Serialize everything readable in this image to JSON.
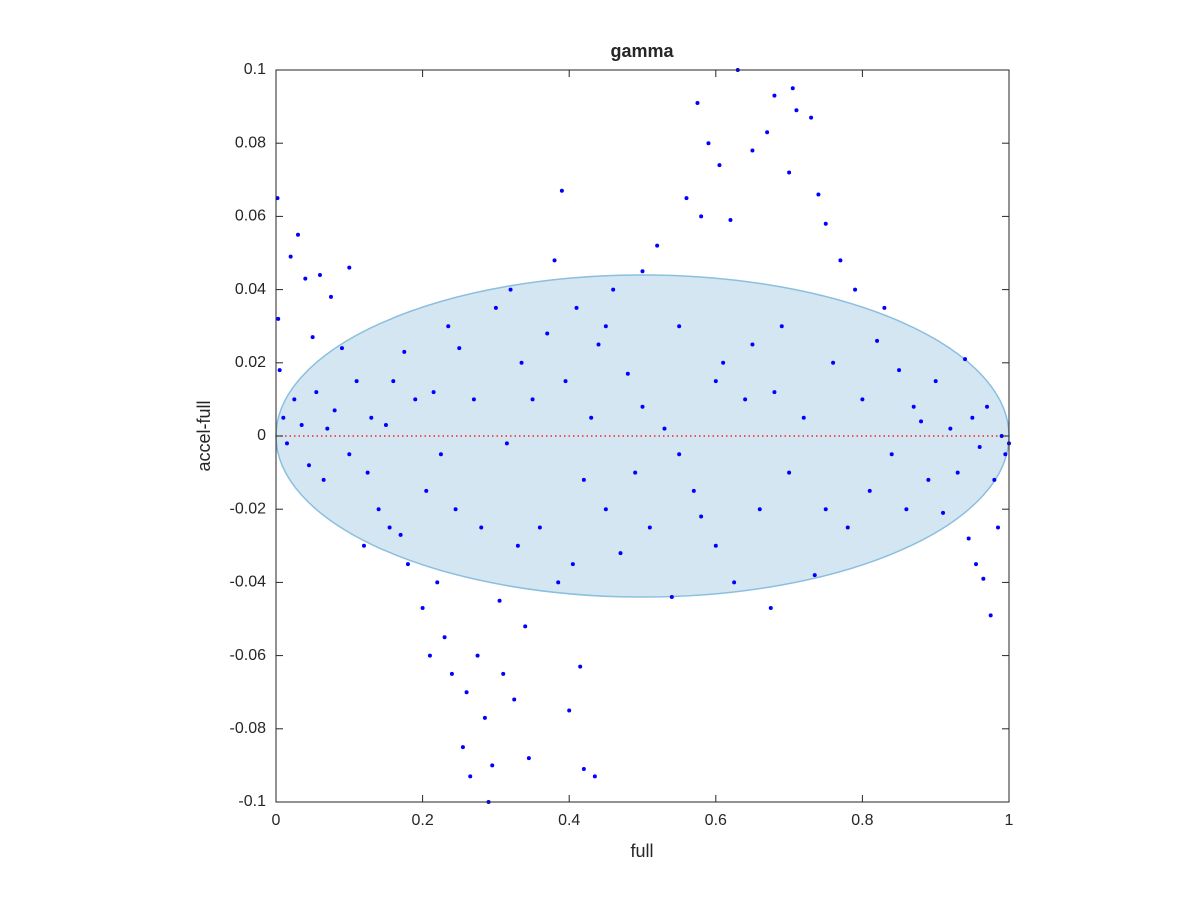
{
  "chart_data": {
    "type": "scatter",
    "title": "gamma",
    "x_label": "full",
    "y_label": "accel-full",
    "xlim": [
      0,
      1
    ],
    "ylim": [
      -0.1,
      0.1
    ],
    "xticks": [
      0,
      0.2,
      0.4,
      0.6,
      0.8,
      1
    ],
    "yticks": [
      -0.1,
      -0.08,
      -0.06,
      -0.04,
      -0.02,
      0,
      0.02,
      0.04,
      0.06,
      0.08,
      0.1
    ],
    "color": "#0000ff",
    "ellipse": {
      "cx": 0.5,
      "cy": 0,
      "rx": 0.5,
      "ry": 0.044,
      "fill": "#d5e6f3",
      "stroke": "#8cbfdf"
    },
    "reference_line": {
      "y": 0,
      "color": "#ff0000"
    },
    "x": [
      0.002,
      0.003,
      0.005,
      0.01,
      0.015,
      0.02,
      0.025,
      0.03,
      0.035,
      0.04,
      0.045,
      0.05,
      0.055,
      0.06,
      0.065,
      0.07,
      0.075,
      0.08,
      0.09,
      0.1,
      0.1,
      0.11,
      0.12,
      0.125,
      0.13,
      0.14,
      0.15,
      0.155,
      0.16,
      0.17,
      0.175,
      0.18,
      0.19,
      0.2,
      0.205,
      0.21,
      0.215,
      0.22,
      0.225,
      0.23,
      0.235,
      0.24,
      0.245,
      0.25,
      0.255,
      0.26,
      0.265,
      0.27,
      0.275,
      0.28,
      0.285,
      0.29,
      0.295,
      0.3,
      0.305,
      0.31,
      0.315,
      0.32,
      0.325,
      0.33,
      0.335,
      0.34,
      0.345,
      0.35,
      0.36,
      0.37,
      0.38,
      0.385,
      0.39,
      0.395,
      0.4,
      0.405,
      0.41,
      0.415,
      0.42,
      0.43,
      0.435,
      0.44,
      0.45,
      0.46,
      0.47,
      0.48,
      0.49,
      0.5,
      0.51,
      0.52,
      0.53,
      0.54,
      0.55,
      0.56,
      0.57,
      0.575,
      0.58,
      0.59,
      0.6,
      0.605,
      0.61,
      0.62,
      0.625,
      0.63,
      0.64,
      0.65,
      0.66,
      0.67,
      0.675,
      0.68,
      0.69,
      0.7,
      0.705,
      0.71,
      0.72,
      0.73,
      0.735,
      0.74,
      0.75,
      0.76,
      0.77,
      0.78,
      0.79,
      0.8,
      0.81,
      0.82,
      0.83,
      0.84,
      0.85,
      0.86,
      0.87,
      0.88,
      0.89,
      0.9,
      0.91,
      0.92,
      0.93,
      0.94,
      0.945,
      0.95,
      0.955,
      0.96,
      0.965,
      0.97,
      0.975,
      0.98,
      0.985,
      0.99,
      0.995,
      1,
      0.45,
      0.55,
      0.6,
      0.65,
      0.7,
      0.75,
      0.5,
      0.42,
      0.58,
      0.68
    ],
    "y": [
      0.065,
      0.032,
      0.018,
      0.005,
      -0.002,
      0.049,
      0.01,
      0.055,
      0.003,
      0.043,
      -0.008,
      0.027,
      0.012,
      0.044,
      -0.012,
      0.002,
      0.038,
      0.007,
      0.024,
      0.046,
      -0.005,
      0.015,
      -0.03,
      -0.01,
      0.005,
      -0.02,
      0.003,
      -0.025,
      0.015,
      -0.027,
      0.023,
      -0.035,
      0.01,
      -0.047,
      -0.015,
      -0.06,
      0.012,
      -0.04,
      -0.005,
      -0.055,
      0.03,
      -0.065,
      -0.02,
      0.024,
      -0.085,
      -0.07,
      -0.093,
      0.01,
      -0.06,
      -0.025,
      -0.077,
      -0.1,
      -0.09,
      0.035,
      -0.045,
      -0.065,
      -0.002,
      0.04,
      -0.072,
      -0.03,
      0.02,
      -0.052,
      -0.088,
      0.01,
      -0.025,
      0.028,
      0.048,
      -0.04,
      0.067,
      0.015,
      -0.075,
      -0.035,
      0.035,
      -0.063,
      -0.091,
      0.005,
      -0.093,
      0.025,
      -0.02,
      0.04,
      -0.032,
      0.017,
      -0.01,
      0.045,
      -0.025,
      0.052,
      0.002,
      -0.044,
      0.03,
      0.065,
      -0.015,
      0.091,
      0.06,
      0.08,
      -0.03,
      0.074,
      0.02,
      0.059,
      -0.04,
      0.1,
      0.01,
      0.078,
      -0.02,
      0.083,
      -0.047,
      0.093,
      0.03,
      0.072,
      0.095,
      0.089,
      0.005,
      0.087,
      -0.038,
      0.066,
      0.058,
      0.02,
      0.048,
      -0.025,
      0.04,
      0.01,
      -0.015,
      0.026,
      0.035,
      -0.005,
      0.018,
      -0.02,
      0.008,
      0.004,
      -0.012,
      0.015,
      -0.021,
      0.002,
      -0.01,
      0.021,
      -0.028,
      0.005,
      -0.035,
      -0.003,
      -0.039,
      0.008,
      -0.049,
      -0.012,
      -0.025,
      0,
      -0.005,
      -0.002,
      0.03,
      -0.005,
      0.015,
      0.025,
      -0.01,
      -0.02,
      0.008,
      -0.012,
      -0.022,
      0.012
    ]
  }
}
